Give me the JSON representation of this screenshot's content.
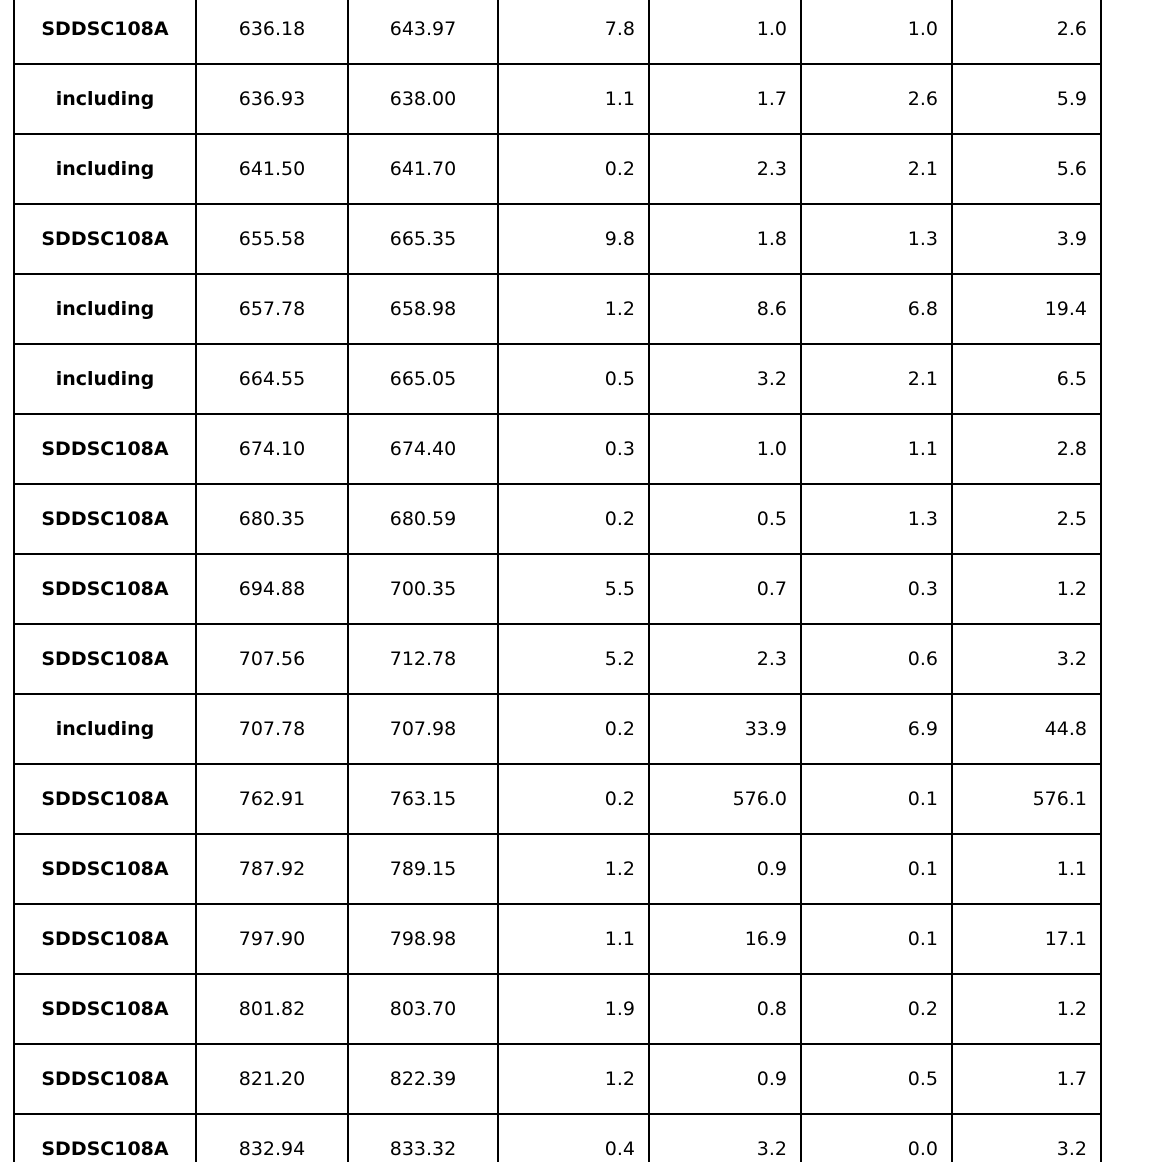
{
  "table": {
    "rows": [
      [
        "SDDSC108A",
        "636.18",
        "643.97",
        "7.8",
        "1.0",
        "1.0",
        "2.6"
      ],
      [
        "including",
        "636.93",
        "638.00",
        "1.1",
        "1.7",
        "2.6",
        "5.9"
      ],
      [
        "including",
        "641.50",
        "641.70",
        "0.2",
        "2.3",
        "2.1",
        "5.6"
      ],
      [
        "SDDSC108A",
        "655.58",
        "665.35",
        "9.8",
        "1.8",
        "1.3",
        "3.9"
      ],
      [
        "including",
        "657.78",
        "658.98",
        "1.2",
        "8.6",
        "6.8",
        "19.4"
      ],
      [
        "including",
        "664.55",
        "665.05",
        "0.5",
        "3.2",
        "2.1",
        "6.5"
      ],
      [
        "SDDSC108A",
        "674.10",
        "674.40",
        "0.3",
        "1.0",
        "1.1",
        "2.8"
      ],
      [
        "SDDSC108A",
        "680.35",
        "680.59",
        "0.2",
        "0.5",
        "1.3",
        "2.5"
      ],
      [
        "SDDSC108A",
        "694.88",
        "700.35",
        "5.5",
        "0.7",
        "0.3",
        "1.2"
      ],
      [
        "SDDSC108A",
        "707.56",
        "712.78",
        "5.2",
        "2.3",
        "0.6",
        "3.2"
      ],
      [
        "including",
        "707.78",
        "707.98",
        "0.2",
        "33.9",
        "6.9",
        "44.8"
      ],
      [
        "SDDSC108A",
        "762.91",
        "763.15",
        "0.2",
        "576.0",
        "0.1",
        "576.1"
      ],
      [
        "SDDSC108A",
        "787.92",
        "789.15",
        "1.2",
        "0.9",
        "0.1",
        "1.1"
      ],
      [
        "SDDSC108A",
        "797.90",
        "798.98",
        "1.1",
        "16.9",
        "0.1",
        "17.1"
      ],
      [
        "SDDSC108A",
        "801.82",
        "803.70",
        "1.9",
        "0.8",
        "0.2",
        "1.2"
      ],
      [
        "SDDSC108A",
        "821.20",
        "822.39",
        "1.2",
        "0.9",
        "0.5",
        "1.7"
      ],
      [
        "SDDSC108A",
        "832.94",
        "833.32",
        "0.4",
        "3.2",
        "0.0",
        "3.2"
      ]
    ],
    "colors": {
      "border": "#000000",
      "text": "#000000",
      "background": "#ffffff"
    }
  }
}
